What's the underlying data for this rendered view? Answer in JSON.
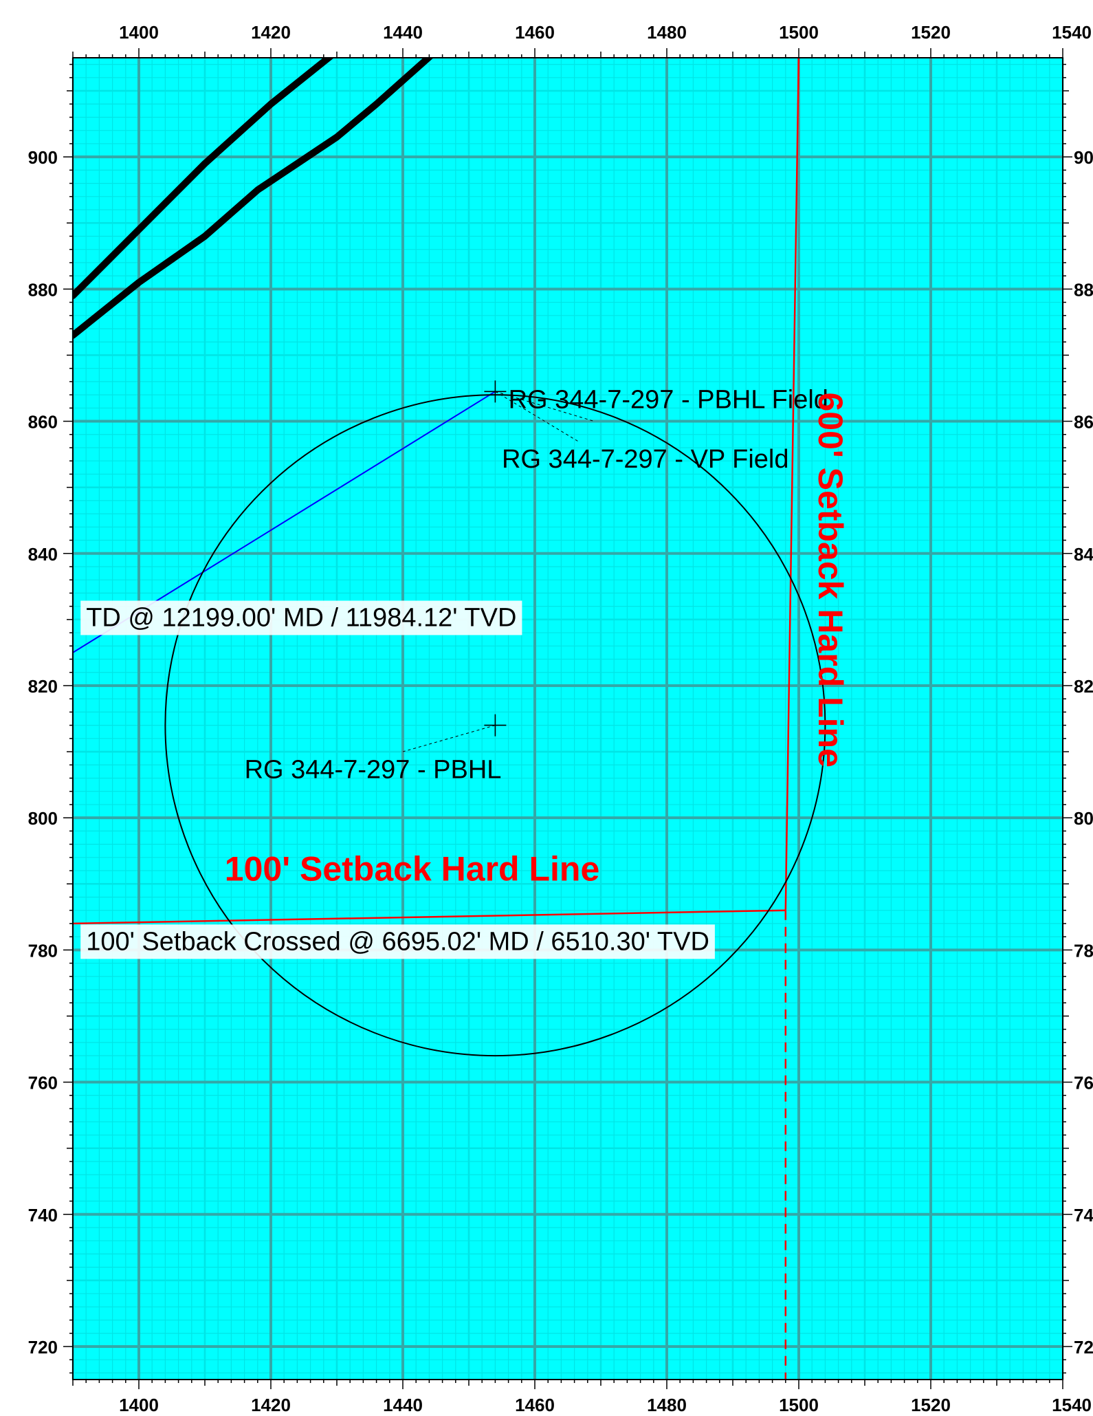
{
  "chart_data": {
    "type": "plan-view",
    "title": "",
    "xlabel": "",
    "ylabel": "",
    "xlim": [
      1390,
      1540
    ],
    "ylim": [
      715,
      915
    ],
    "grid": true,
    "x_ticks": [
      1400,
      1420,
      1440,
      1460,
      1480,
      1500,
      1520,
      1540
    ],
    "y_ticks": [
      720,
      740,
      760,
      780,
      800,
      820,
      840,
      860,
      880,
      900
    ],
    "x_tick_labels": [
      "1400",
      "1420",
      "1440",
      "1460",
      "1480",
      "1500",
      "1520",
      "1540"
    ],
    "y_tick_labels": [
      "720",
      "740",
      "760",
      "780",
      "800",
      "820",
      "840",
      "860",
      "880",
      "900"
    ],
    "colors": {
      "grid_fine": "#00e5e5",
      "grid_major": "#33a8a8",
      "setback": "#ff0000",
      "wellpath": "#0000ff",
      "offset_wells": "#000000",
      "circle": "#000000",
      "background": "#00ffff"
    },
    "series": [
      {
        "kind": "offset-well",
        "points": [
          [
            1390,
            879
          ],
          [
            1400,
            889
          ],
          [
            1410,
            899
          ],
          [
            1420,
            908
          ],
          [
            1430,
            916
          ]
        ]
      },
      {
        "kind": "offset-well",
        "points": [
          [
            1390,
            873
          ],
          [
            1400,
            881
          ],
          [
            1410,
            888
          ],
          [
            1418,
            895
          ],
          [
            1424,
            899
          ],
          [
            1430,
            903
          ],
          [
            1436,
            908
          ],
          [
            1445,
            916
          ]
        ]
      },
      {
        "kind": "wellpath",
        "points": [
          [
            1390,
            825
          ],
          [
            1454,
            864.5
          ]
        ]
      },
      {
        "kind": "setback-100",
        "points": [
          [
            1390,
            784
          ],
          [
            1498,
            786
          ]
        ]
      },
      {
        "kind": "setback-600",
        "points": [
          [
            1498,
            786
          ],
          [
            1500,
            916
          ]
        ]
      },
      {
        "kind": "setback-600-dashed",
        "points": [
          [
            1498,
            786
          ],
          [
            1498,
            715
          ]
        ]
      },
      {
        "kind": "tolerance-circle",
        "center": [
          1454,
          814
        ],
        "radius": 50
      }
    ],
    "targets": [
      {
        "name": "RG 344-7-297 - PBHL Field",
        "x": 1454,
        "y": 864.5
      },
      {
        "name": "RG 344-7-297 - PBHL",
        "x": 1454,
        "y": 814
      }
    ],
    "annotations": [
      {
        "text": "RG 344-7-297 - PBHL Field",
        "x": 1456,
        "y": 862,
        "color": "#000000"
      },
      {
        "text": "RG 344-7-297 - VP Field",
        "x": 1455,
        "y": 853,
        "color": "#000000"
      },
      {
        "text": "TD @ 12199.00' MD / 11984.12' TVD",
        "x": 1392,
        "y": 829,
        "color": "#000000"
      },
      {
        "text": "RG 344-7-297 - PBHL",
        "x": 1416,
        "y": 806,
        "color": "#000000"
      },
      {
        "text": "100' Setback Hard Line",
        "x": 1413,
        "y": 790.5,
        "color": "#ff0000"
      },
      {
        "text": "100' Setback Crossed @ 6695.02' MD / 6510.30' TVD",
        "x": 1392,
        "y": 780,
        "color": "#000000"
      },
      {
        "text": "600' Setback Hard Line",
        "x": 1503,
        "y": 836,
        "color": "#ff0000",
        "rotation": 90
      }
    ]
  }
}
